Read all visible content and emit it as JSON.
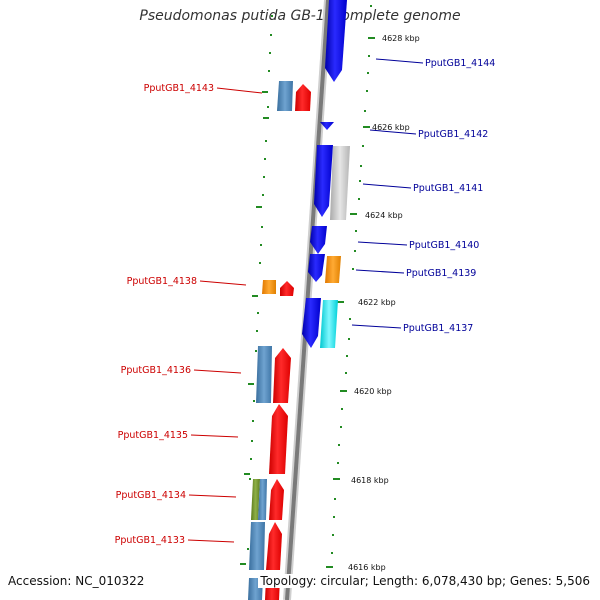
{
  "title": "Pseudomonas putida GB-1, complete genome",
  "footer": {
    "accession": "Accession: NC_010322",
    "stats": "Topology: circular; Length: 6,078,430 bp; Genes: 5,506"
  },
  "ticks": [
    "4628 kbp",
    "4626 kbp",
    "4624 kbp",
    "4622 kbp",
    "4620 kbp",
    "4618 kbp",
    "4616 kbp"
  ],
  "genes_left": [
    "PputGB1_4143",
    "PputGB1_4138",
    "PputGB1_4136",
    "PputGB1_4135",
    "PputGB1_4134",
    "PputGB1_4133"
  ],
  "genes_right": [
    "PputGB1_4144",
    "PputGB1_4142",
    "PputGB1_4141",
    "PputGB1_4140",
    "PputGB1_4139",
    "PputGB1_4137"
  ],
  "colors": {
    "backbone": "#888888",
    "forward_gene": "#ff0000",
    "reverse_gene": "#0000ee",
    "steelblue": "#4682b4",
    "orange": "#ff8c00",
    "cyan": "#00e5ee",
    "gray": "#c0c0c0",
    "olive": "#6b8e23",
    "dots": "#228b22"
  }
}
